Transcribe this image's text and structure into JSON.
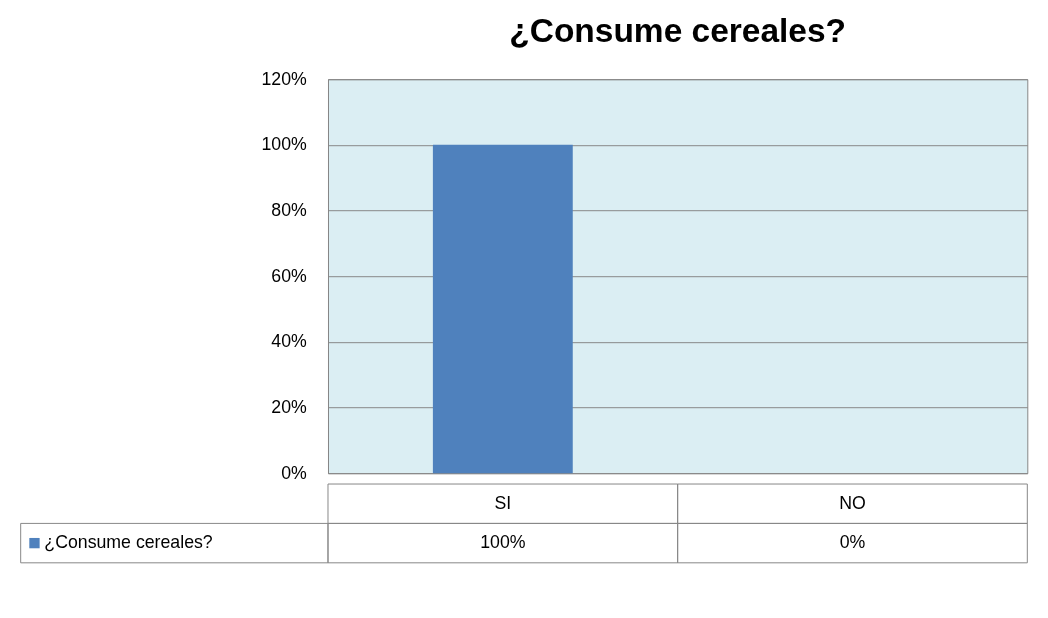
{
  "chart_data": {
    "type": "bar",
    "title": "¿Consume cereales?",
    "categories": [
      "SI",
      "NO"
    ],
    "series": [
      {
        "name": "¿Consume cereales?",
        "color": "#4f81bd",
        "values": [
          100,
          0
        ],
        "value_labels": [
          "100%",
          "0%"
        ]
      }
    ],
    "ylim": [
      0,
      120
    ],
    "yticks": [
      {
        "value": 0,
        "label": "0%"
      },
      {
        "value": 20,
        "label": "20%"
      },
      {
        "value": 40,
        "label": "40%"
      },
      {
        "value": 60,
        "label": "60%"
      },
      {
        "value": 80,
        "label": "80%"
      },
      {
        "value": 100,
        "label": "100%"
      },
      {
        "value": 120,
        "label": "120%"
      }
    ],
    "grid": "y",
    "legend": "bottom"
  }
}
